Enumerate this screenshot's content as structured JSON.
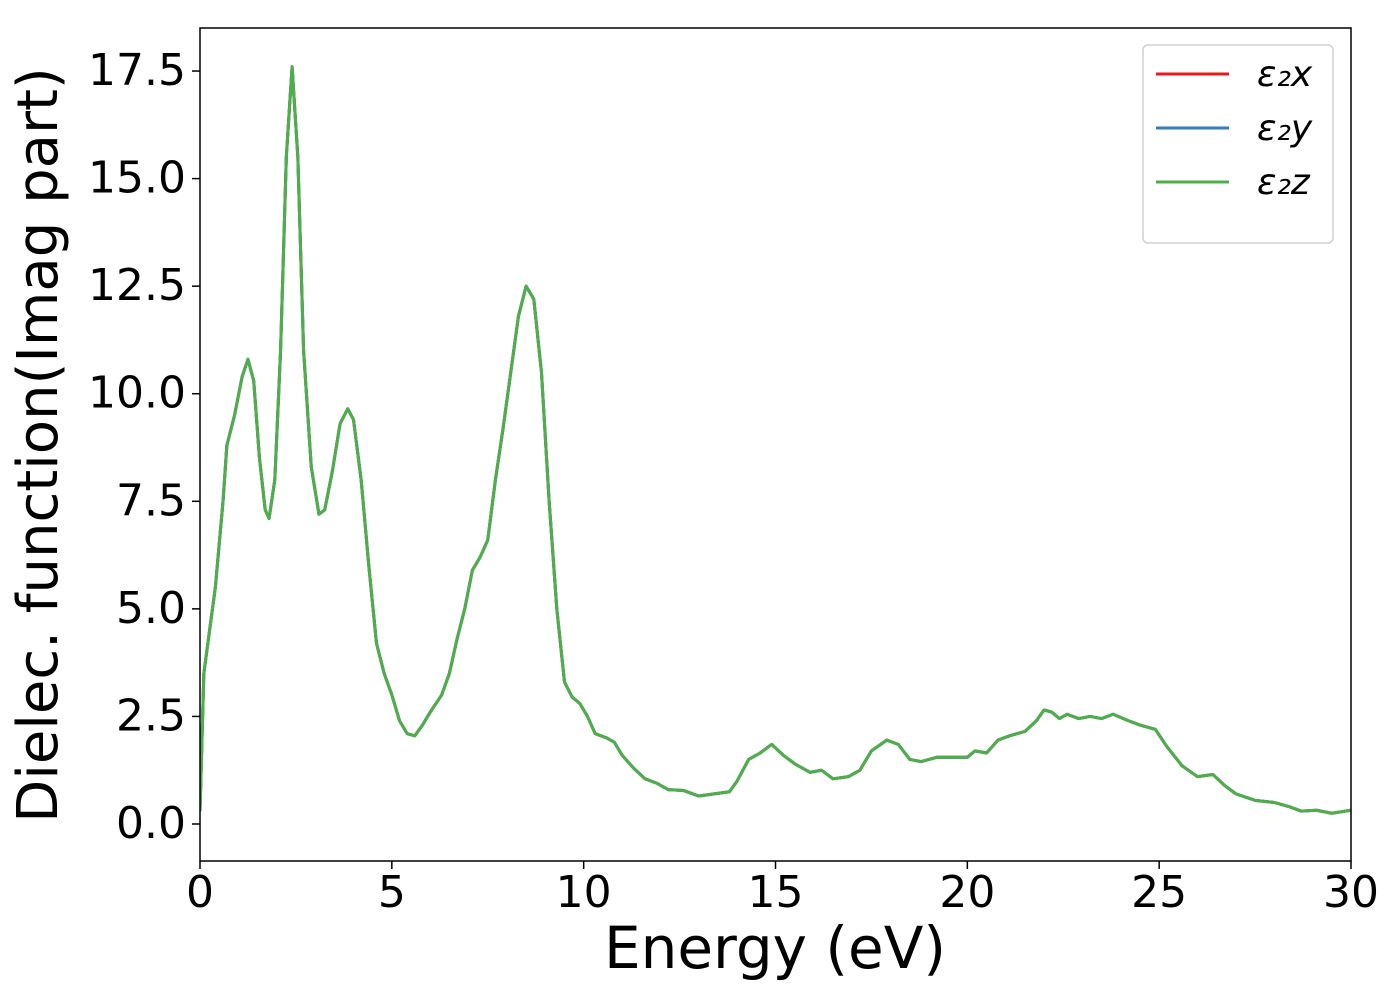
{
  "chart_data": {
    "type": "line",
    "xlabel": "Energy (eV)",
    "ylabel": "Dielec. function(Imag part)",
    "xlim": [
      0,
      30
    ],
    "ylim": [
      -0.86,
      18.5
    ],
    "xticks": [
      0,
      5,
      10,
      15,
      20,
      25,
      30
    ],
    "yticks": [
      {
        "value": 0,
        "label": "0.0"
      },
      2.5,
      {
        "value": 5,
        "label": "5.0"
      },
      7.5,
      {
        "value": 10,
        "label": "10.0"
      },
      12.5,
      {
        "value": 15,
        "label": "15.0"
      },
      17.5
    ],
    "grid": false,
    "legend": "upper right",
    "x": [
      0,
      0.1,
      0.25,
      0.4,
      0.6,
      0.7,
      0.9,
      1.1,
      1.25,
      1.4,
      1.55,
      1.7,
      1.8,
      1.95,
      2.1,
      2.25,
      2.4,
      2.55,
      2.7,
      2.9,
      3.1,
      3.25,
      3.45,
      3.65,
      3.85,
      4.0,
      4.2,
      4.4,
      4.6,
      4.8,
      5.0,
      5.2,
      5.4,
      5.6,
      5.8,
      6.0,
      6.3,
      6.5,
      6.7,
      6.9,
      7.1,
      7.3,
      7.5,
      7.7,
      7.9,
      8.1,
      8.3,
      8.5,
      8.7,
      8.9,
      9.1,
      9.3,
      9.5,
      9.7,
      9.9,
      10.1,
      10.3,
      10.6,
      10.8,
      11.0,
      11.3,
      11.6,
      11.9,
      12.2,
      12.6,
      13.0,
      13.4,
      13.8,
      14.0,
      14.3,
      14.6,
      14.9,
      15.2,
      15.5,
      15.9,
      16.2,
      16.5,
      16.9,
      17.2,
      17.5,
      17.9,
      18.2,
      18.5,
      18.8,
      19.2,
      19.7,
      20.0,
      20.2,
      20.5,
      20.8,
      21.1,
      21.5,
      21.8,
      22.0,
      22.2,
      22.4,
      22.6,
      22.9,
      23.2,
      23.5,
      23.8,
      24.2,
      24.5,
      24.9,
      25.2,
      25.6,
      26.0,
      26.4,
      26.7,
      27.0,
      27.5,
      28.0,
      28.4,
      28.7,
      29.1,
      29.5,
      30.0
    ],
    "series": [
      {
        "name": "ε₂x",
        "color": "#e41a1c",
        "values": [
          0.3,
          3.5,
          4.5,
          5.5,
          7.5,
          8.8,
          9.5,
          10.4,
          10.8,
          10.3,
          8.5,
          7.3,
          7.1,
          8.0,
          11.0,
          15.5,
          17.6,
          15.5,
          11.0,
          8.3,
          7.2,
          7.3,
          8.2,
          9.3,
          9.65,
          9.4,
          8.0,
          6.0,
          4.2,
          3.5,
          3.0,
          2.4,
          2.1,
          2.05,
          2.3,
          2.6,
          3.0,
          3.5,
          4.3,
          5.0,
          5.9,
          6.2,
          6.6,
          8.0,
          9.2,
          10.5,
          11.8,
          12.5,
          12.2,
          10.5,
          7.5,
          5.0,
          3.3,
          2.95,
          2.8,
          2.5,
          2.1,
          2.0,
          1.9,
          1.6,
          1.3,
          1.05,
          0.95,
          0.8,
          0.78,
          0.65,
          0.7,
          0.75,
          1.0,
          1.5,
          1.65,
          1.85,
          1.6,
          1.4,
          1.2,
          1.25,
          1.05,
          1.1,
          1.25,
          1.7,
          1.95,
          1.85,
          1.5,
          1.45,
          1.55,
          1.55,
          1.55,
          1.7,
          1.65,
          1.95,
          2.05,
          2.15,
          2.4,
          2.65,
          2.6,
          2.45,
          2.55,
          2.45,
          2.5,
          2.45,
          2.55,
          2.4,
          2.3,
          2.2,
          1.8,
          1.35,
          1.1,
          1.15,
          0.9,
          0.7,
          0.55,
          0.5,
          0.4,
          0.3,
          0.32,
          0.25,
          0.32
        ]
      },
      {
        "name": "ε₂y",
        "color": "#377eb8",
        "values": [
          0.3,
          3.5,
          4.5,
          5.5,
          7.5,
          8.8,
          9.5,
          10.4,
          10.8,
          10.3,
          8.5,
          7.3,
          7.1,
          8.0,
          11.0,
          15.5,
          17.6,
          15.5,
          11.0,
          8.3,
          7.2,
          7.3,
          8.2,
          9.3,
          9.65,
          9.4,
          8.0,
          6.0,
          4.2,
          3.5,
          3.0,
          2.4,
          2.1,
          2.05,
          2.3,
          2.6,
          3.0,
          3.5,
          4.3,
          5.0,
          5.9,
          6.2,
          6.6,
          8.0,
          9.2,
          10.5,
          11.8,
          12.5,
          12.2,
          10.5,
          7.5,
          5.0,
          3.3,
          2.95,
          2.8,
          2.5,
          2.1,
          2.0,
          1.9,
          1.6,
          1.3,
          1.05,
          0.95,
          0.8,
          0.78,
          0.65,
          0.7,
          0.75,
          1.0,
          1.5,
          1.65,
          1.85,
          1.6,
          1.4,
          1.2,
          1.25,
          1.05,
          1.1,
          1.25,
          1.7,
          1.95,
          1.85,
          1.5,
          1.45,
          1.55,
          1.55,
          1.55,
          1.7,
          1.65,
          1.95,
          2.05,
          2.15,
          2.4,
          2.65,
          2.6,
          2.45,
          2.55,
          2.45,
          2.5,
          2.45,
          2.55,
          2.4,
          2.3,
          2.2,
          1.8,
          1.35,
          1.1,
          1.15,
          0.9,
          0.7,
          0.55,
          0.5,
          0.4,
          0.3,
          0.32,
          0.25,
          0.32
        ]
      },
      {
        "name": "ε₂z",
        "color": "#4daf4a",
        "values": [
          0.3,
          3.5,
          4.5,
          5.5,
          7.5,
          8.8,
          9.5,
          10.4,
          10.8,
          10.3,
          8.5,
          7.3,
          7.1,
          8.0,
          11.0,
          15.5,
          17.6,
          15.5,
          11.0,
          8.3,
          7.2,
          7.3,
          8.2,
          9.3,
          9.65,
          9.4,
          8.0,
          6.0,
          4.2,
          3.5,
          3.0,
          2.4,
          2.1,
          2.05,
          2.3,
          2.6,
          3.0,
          3.5,
          4.3,
          5.0,
          5.9,
          6.2,
          6.6,
          8.0,
          9.2,
          10.5,
          11.8,
          12.5,
          12.2,
          10.5,
          7.5,
          5.0,
          3.3,
          2.95,
          2.8,
          2.5,
          2.1,
          2.0,
          1.9,
          1.6,
          1.3,
          1.05,
          0.95,
          0.8,
          0.78,
          0.65,
          0.7,
          0.75,
          1.0,
          1.5,
          1.65,
          1.85,
          1.6,
          1.4,
          1.2,
          1.25,
          1.05,
          1.1,
          1.25,
          1.7,
          1.95,
          1.85,
          1.5,
          1.45,
          1.55,
          1.55,
          1.55,
          1.7,
          1.65,
          1.95,
          2.05,
          2.15,
          2.4,
          2.65,
          2.6,
          2.45,
          2.55,
          2.45,
          2.5,
          2.45,
          2.55,
          2.4,
          2.3,
          2.2,
          1.8,
          1.35,
          1.1,
          1.15,
          0.9,
          0.7,
          0.55,
          0.5,
          0.4,
          0.3,
          0.32,
          0.25,
          0.32
        ]
      }
    ]
  }
}
